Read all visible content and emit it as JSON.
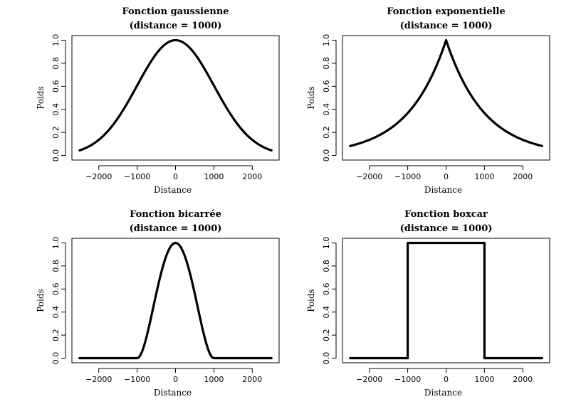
{
  "chart_data": [
    {
      "type": "line",
      "function": "gaussian",
      "title": "Fonction gaussienne",
      "subtitle": "(distance = 1000)",
      "xlabel": "Distance",
      "ylabel": "Poids",
      "xlim": [
        -2500,
        2500
      ],
      "ylim": [
        0,
        1
      ],
      "xticks": [
        -2000,
        -1000,
        0,
        1000,
        2000
      ],
      "yticks": [
        0.0,
        0.2,
        0.4,
        0.6,
        0.8,
        1.0
      ],
      "xtick_labels": [
        "−2000",
        "−1000",
        "0",
        "1000",
        "2000"
      ],
      "ytick_labels": [
        "0.0",
        "0.2",
        "0.4",
        "0.6",
        "0.8",
        "1.0"
      ],
      "series": [
        {
          "x": [
            -2500,
            -2250,
            -2000,
            -1750,
            -1500,
            -1250,
            -1000,
            -750,
            -500,
            -250,
            0,
            250,
            500,
            750,
            1000,
            1250,
            1500,
            1750,
            2000,
            2250,
            2500
          ],
          "y": [
            0.044,
            0.08,
            0.135,
            0.216,
            0.325,
            0.458,
            0.607,
            0.755,
            0.882,
            0.969,
            1.0,
            0.969,
            0.882,
            0.755,
            0.607,
            0.458,
            0.325,
            0.216,
            0.135,
            0.08,
            0.044
          ]
        }
      ]
    },
    {
      "type": "line",
      "function": "exponential",
      "title": "Fonction exponentielle",
      "subtitle": "(distance = 1000)",
      "xlabel": "Distance",
      "ylabel": "Poids",
      "xlim": [
        -2500,
        2500
      ],
      "ylim": [
        0,
        1
      ],
      "xticks": [
        -2000,
        -1000,
        0,
        1000,
        2000
      ],
      "yticks": [
        0.0,
        0.2,
        0.4,
        0.6,
        0.8,
        1.0
      ],
      "xtick_labels": [
        "−2000",
        "−1000",
        "0",
        "1000",
        "2000"
      ],
      "ytick_labels": [
        "0.0",
        "0.2",
        "0.4",
        "0.6",
        "0.8",
        "1.0"
      ],
      "series": [
        {
          "x": [
            -2500,
            -2250,
            -2000,
            -1750,
            -1500,
            -1250,
            -1000,
            -750,
            -500,
            -250,
            0,
            250,
            500,
            750,
            1000,
            1250,
            1500,
            1750,
            2000,
            2250,
            2500
          ],
          "y": [
            0.082,
            0.105,
            0.135,
            0.174,
            0.223,
            0.287,
            0.368,
            0.472,
            0.607,
            0.779,
            1.0,
            0.779,
            0.607,
            0.472,
            0.368,
            0.287,
            0.223,
            0.174,
            0.135,
            0.105,
            0.082
          ]
        }
      ]
    },
    {
      "type": "line",
      "function": "bisquare",
      "title": "Fonction bicarrée",
      "subtitle": "(distance = 1000)",
      "xlabel": "Distance",
      "ylabel": "Poids",
      "xlim": [
        -2500,
        2500
      ],
      "ylim": [
        0,
        1
      ],
      "xticks": [
        -2000,
        -1000,
        0,
        1000,
        2000
      ],
      "yticks": [
        0.0,
        0.2,
        0.4,
        0.6,
        0.8,
        1.0
      ],
      "xtick_labels": [
        "−2000",
        "−1000",
        "0",
        "1000",
        "2000"
      ],
      "ytick_labels": [
        "0.0",
        "0.2",
        "0.4",
        "0.6",
        "0.8",
        "1.0"
      ],
      "series": [
        {
          "x": [
            -2500,
            -1500,
            -1000,
            -900,
            -800,
            -700,
            -600,
            -500,
            -400,
            -300,
            -200,
            -100,
            0,
            100,
            200,
            300,
            400,
            500,
            600,
            700,
            800,
            900,
            1000,
            1500,
            2500
          ],
          "y": [
            0,
            0,
            0,
            0.036,
            0.13,
            0.26,
            0.41,
            0.563,
            0.706,
            0.828,
            0.922,
            0.98,
            1.0,
            0.98,
            0.922,
            0.828,
            0.706,
            0.563,
            0.41,
            0.26,
            0.13,
            0.036,
            0,
            0,
            0
          ]
        }
      ]
    },
    {
      "type": "line",
      "function": "boxcar",
      "title": "Fonction boxcar",
      "subtitle": "(distance = 1000)",
      "xlabel": "Distance",
      "ylabel": "Poids",
      "xlim": [
        -2500,
        2500
      ],
      "ylim": [
        0,
        1
      ],
      "xticks": [
        -2000,
        -1000,
        0,
        1000,
        2000
      ],
      "yticks": [
        0.0,
        0.2,
        0.4,
        0.6,
        0.8,
        1.0
      ],
      "xtick_labels": [
        "−2000",
        "−1000",
        "0",
        "1000",
        "2000"
      ],
      "ytick_labels": [
        "0.0",
        "0.2",
        "0.4",
        "0.6",
        "0.8",
        "1.0"
      ],
      "series": [
        {
          "x": [
            -2500,
            -1000,
            -1000,
            1000,
            1000,
            2500
          ],
          "y": [
            0,
            0,
            1,
            1,
            0,
            0
          ]
        }
      ]
    }
  ]
}
